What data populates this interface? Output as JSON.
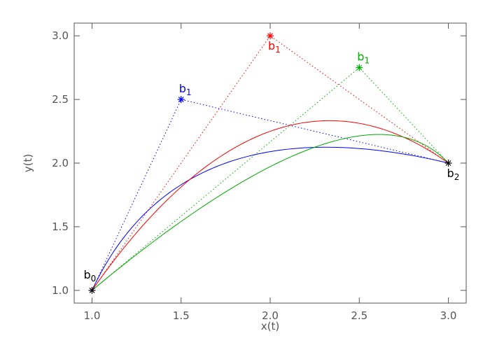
{
  "chart_data": {
    "type": "line",
    "title": "",
    "xlabel": "x(t)",
    "ylabel": "y(t)",
    "xlim": [
      0.9,
      3.1
    ],
    "ylim": [
      0.9,
      3.1
    ],
    "grid": false,
    "x_ticks": [
      1.0,
      1.5,
      2.0,
      2.5,
      3.0
    ],
    "y_ticks": [
      1.0,
      1.5,
      2.0,
      2.5,
      3.0
    ],
    "x_tick_labels": [
      "1.0",
      "1.5",
      "2.0",
      "2.5",
      "3.0"
    ],
    "y_tick_labels": [
      "1.0",
      "1.5",
      "2.0",
      "2.5",
      "3.0"
    ],
    "shared_points": {
      "b0": {
        "x": 1.0,
        "y": 1.0,
        "label": "b",
        "sub": "0",
        "color": "#000000"
      },
      "b2": {
        "x": 3.0,
        "y": 2.0,
        "label": "b",
        "sub": "2",
        "color": "#000000"
      }
    },
    "series": [
      {
        "color": "#0000ff",
        "control_point": {
          "x": 1.5,
          "y": 2.5,
          "label": "b",
          "sub": "1"
        }
      },
      {
        "color": "#ff0000",
        "control_point": {
          "x": 2.0,
          "y": 3.0,
          "label": "b",
          "sub": "1"
        }
      },
      {
        "color": "#00aa00",
        "control_point": {
          "x": 2.5,
          "y": 2.75,
          "label": "b",
          "sub": "1"
        }
      }
    ]
  }
}
